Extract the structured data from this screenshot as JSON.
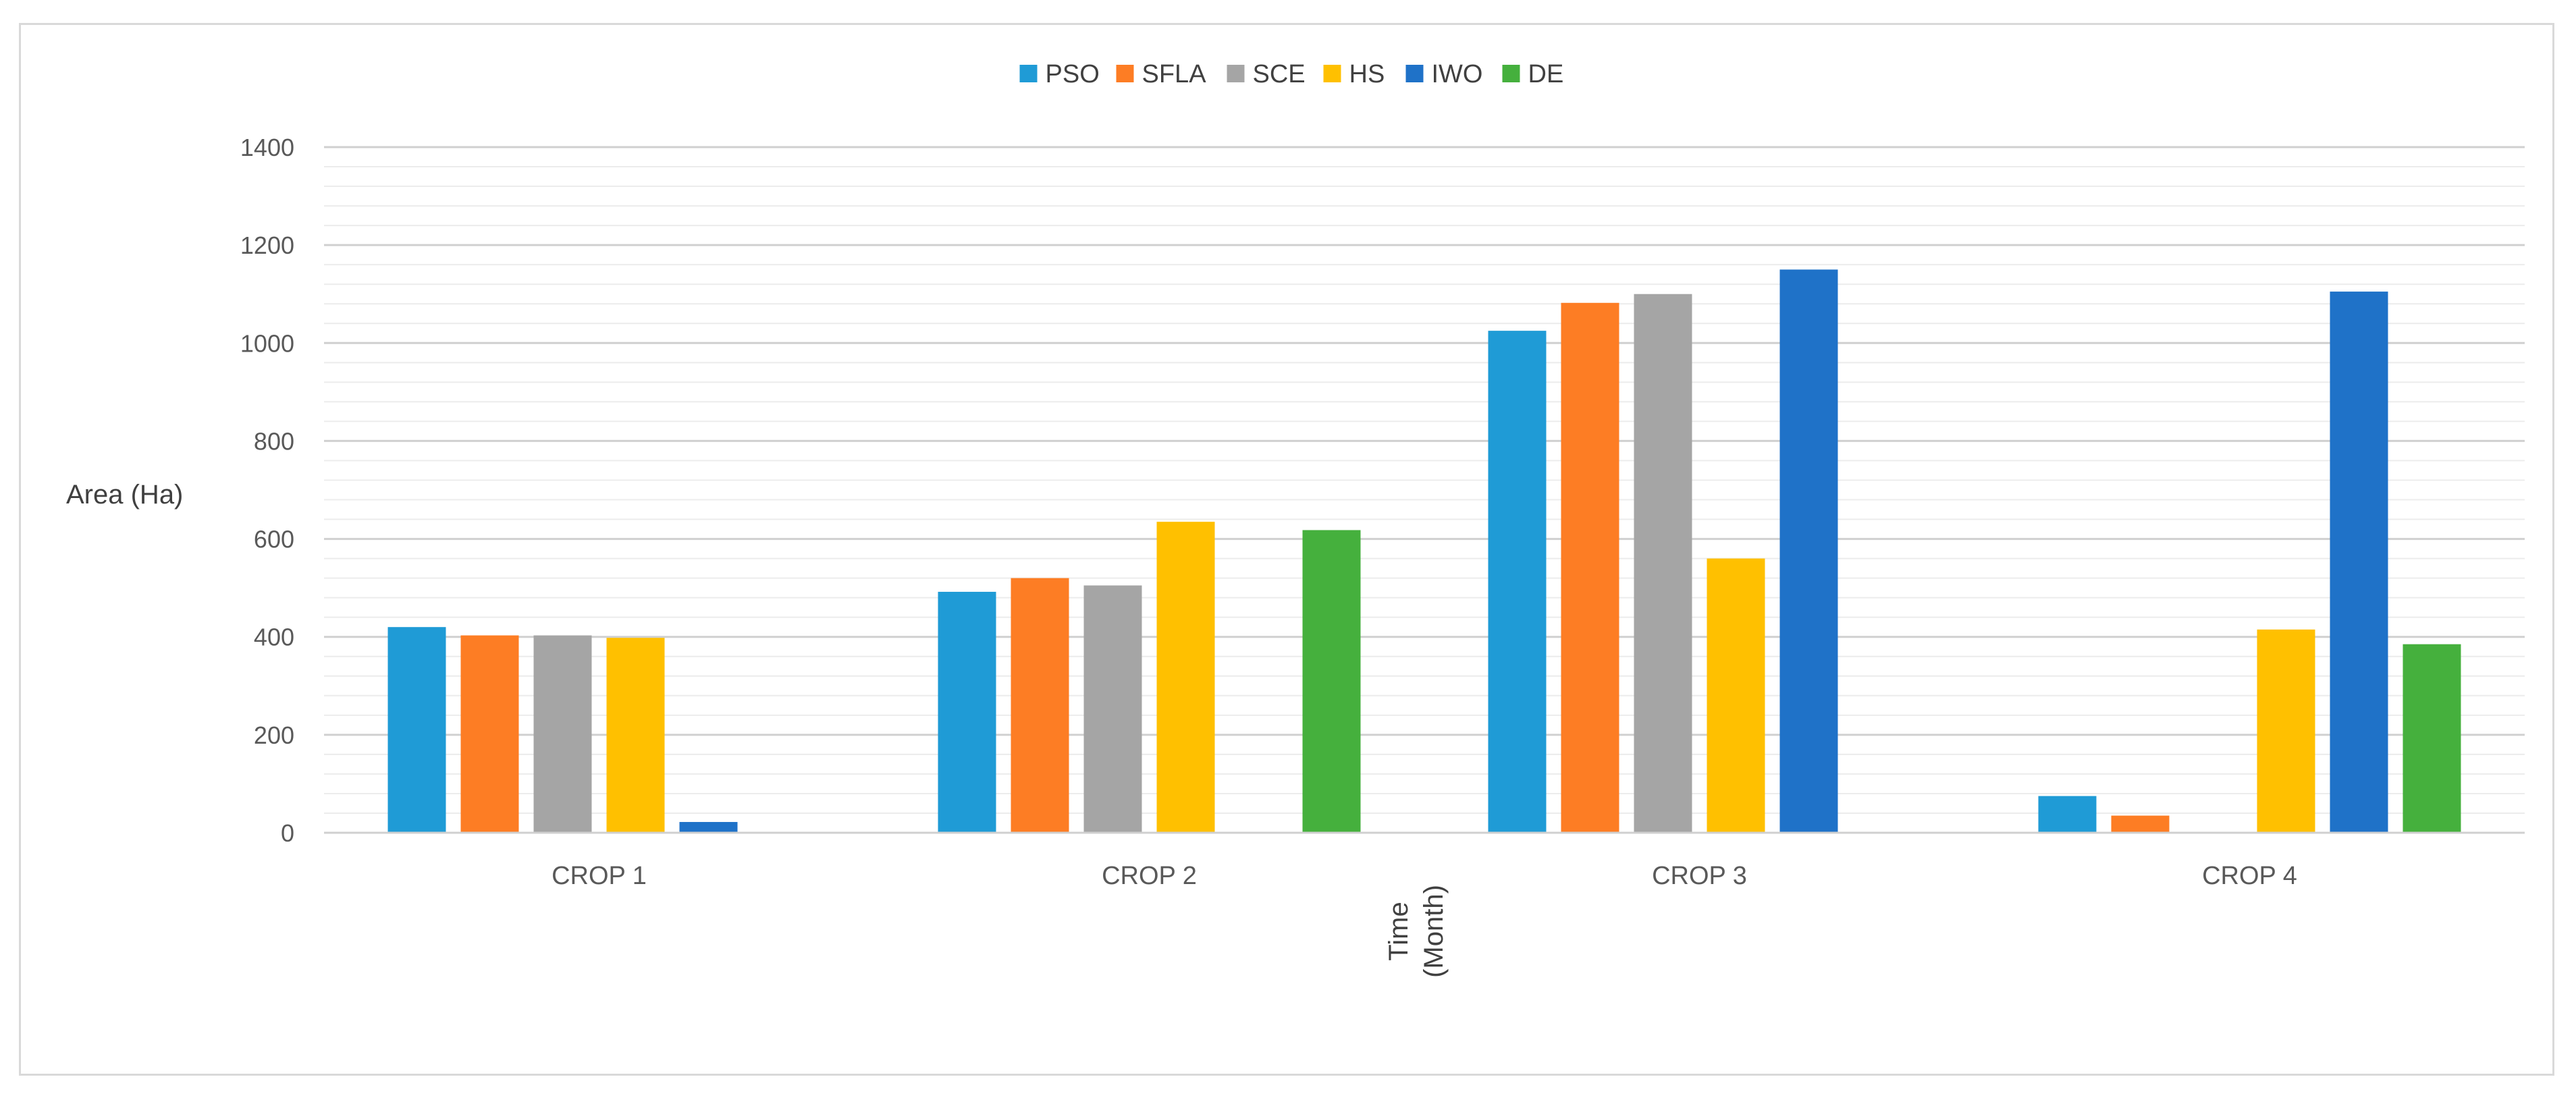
{
  "chart_data": {
    "type": "bar",
    "title": "",
    "xlabel": [
      "Time",
      "(Month)"
    ],
    "ylabel": "Area (Ha)",
    "ylim": [
      0,
      1400
    ],
    "y_major_step": 200,
    "y_minor_step": 40,
    "legend_position": "top-center",
    "categories": [
      "CROP 1",
      "CROP 2",
      "CROP 3",
      "CROP 4"
    ],
    "series": [
      {
        "name": "PSO",
        "color": "#1f9bd6",
        "values": [
          420,
          492,
          1025,
          75
        ]
      },
      {
        "name": "SFLA",
        "color": "#fd7d24",
        "values": [
          403,
          520,
          1082,
          35
        ]
      },
      {
        "name": "SCE",
        "color": "#a5a5a5",
        "values": [
          403,
          505,
          1100,
          0
        ]
      },
      {
        "name": "HS",
        "color": "#ffc000",
        "values": [
          398,
          635,
          560,
          415
        ]
      },
      {
        "name": "IWO",
        "color": "#1f72c8",
        "values": [
          22,
          0,
          1150,
          1105
        ]
      },
      {
        "name": "DE",
        "color": "#45b03d",
        "values": [
          0,
          618,
          0,
          385
        ]
      }
    ]
  }
}
